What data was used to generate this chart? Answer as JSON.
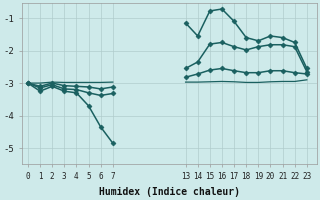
{
  "xlabel": "Humidex (Indice chaleur)",
  "bg_color": "#ceeaea",
  "grid_color": "#b0cccc",
  "line_color": "#1a6060",
  "xticks": [
    0,
    1,
    2,
    3,
    4,
    5,
    6,
    7,
    13,
    14,
    15,
    16,
    17,
    18,
    19,
    20,
    21,
    22,
    23
  ],
  "yticks": [
    -1,
    -2,
    -3,
    -4,
    -5
  ],
  "xlim": [
    -0.5,
    23.8
  ],
  "ylim": [
    -5.5,
    -0.55
  ],
  "series": [
    {
      "x_left": [
        0,
        1,
        2,
        3,
        4,
        5,
        6,
        7
      ],
      "y_left": [
        -3.0,
        -3.25,
        -3.1,
        -3.25,
        -3.3,
        -3.7,
        -4.35,
        -4.85
      ],
      "x_right": [
        13,
        14,
        15,
        16,
        17,
        18,
        19,
        20,
        21,
        22,
        23
      ],
      "y_right": [
        -1.15,
        -1.55,
        -0.78,
        -0.72,
        -1.1,
        -1.6,
        -1.7,
        -1.55,
        -1.6,
        -1.75,
        -2.55
      ],
      "marker": "D",
      "markersize": 2.5,
      "linewidth": 1.1
    },
    {
      "x_left": [
        0,
        1,
        2,
        3,
        4,
        5,
        6,
        7
      ],
      "y_left": [
        -3.0,
        -3.15,
        -3.05,
        -3.18,
        -3.2,
        -3.3,
        -3.38,
        -3.32
      ],
      "x_right": [
        13,
        14,
        15,
        16,
        17,
        18,
        19,
        20,
        21,
        22,
        23
      ],
      "y_right": [
        -2.55,
        -2.35,
        -1.8,
        -1.75,
        -1.88,
        -1.98,
        -1.88,
        -1.82,
        -1.82,
        -1.88,
        -2.65
      ],
      "marker": "D",
      "markersize": 2.5,
      "linewidth": 1.1
    },
    {
      "x_left": [
        0,
        1,
        2,
        3,
        4,
        5,
        6,
        7
      ],
      "y_left": [
        -3.0,
        -3.1,
        -3.0,
        -3.08,
        -3.1,
        -3.12,
        -3.18,
        -3.12
      ],
      "x_right": [
        13,
        14,
        15,
        16,
        17,
        18,
        19,
        20,
        21,
        22,
        23
      ],
      "y_right": [
        -2.82,
        -2.72,
        -2.6,
        -2.55,
        -2.62,
        -2.68,
        -2.68,
        -2.62,
        -2.62,
        -2.68,
        -2.72
      ],
      "marker": "D",
      "markersize": 2.5,
      "linewidth": 1.1
    },
    {
      "x_left": [
        0,
        1,
        2,
        3,
        4,
        5,
        6,
        7
      ],
      "y_left": [
        -3.0,
        -3.0,
        -2.97,
        -2.98,
        -2.98,
        -2.98,
        -2.98,
        -2.97
      ],
      "x_right": [
        13,
        14,
        15,
        16,
        17,
        18,
        19,
        20,
        21,
        22,
        23
      ],
      "y_right": [
        -2.97,
        -2.97,
        -2.96,
        -2.95,
        -2.96,
        -2.98,
        -2.98,
        -2.96,
        -2.95,
        -2.95,
        -2.9
      ],
      "marker": null,
      "markersize": 0,
      "linewidth": 0.9
    }
  ]
}
